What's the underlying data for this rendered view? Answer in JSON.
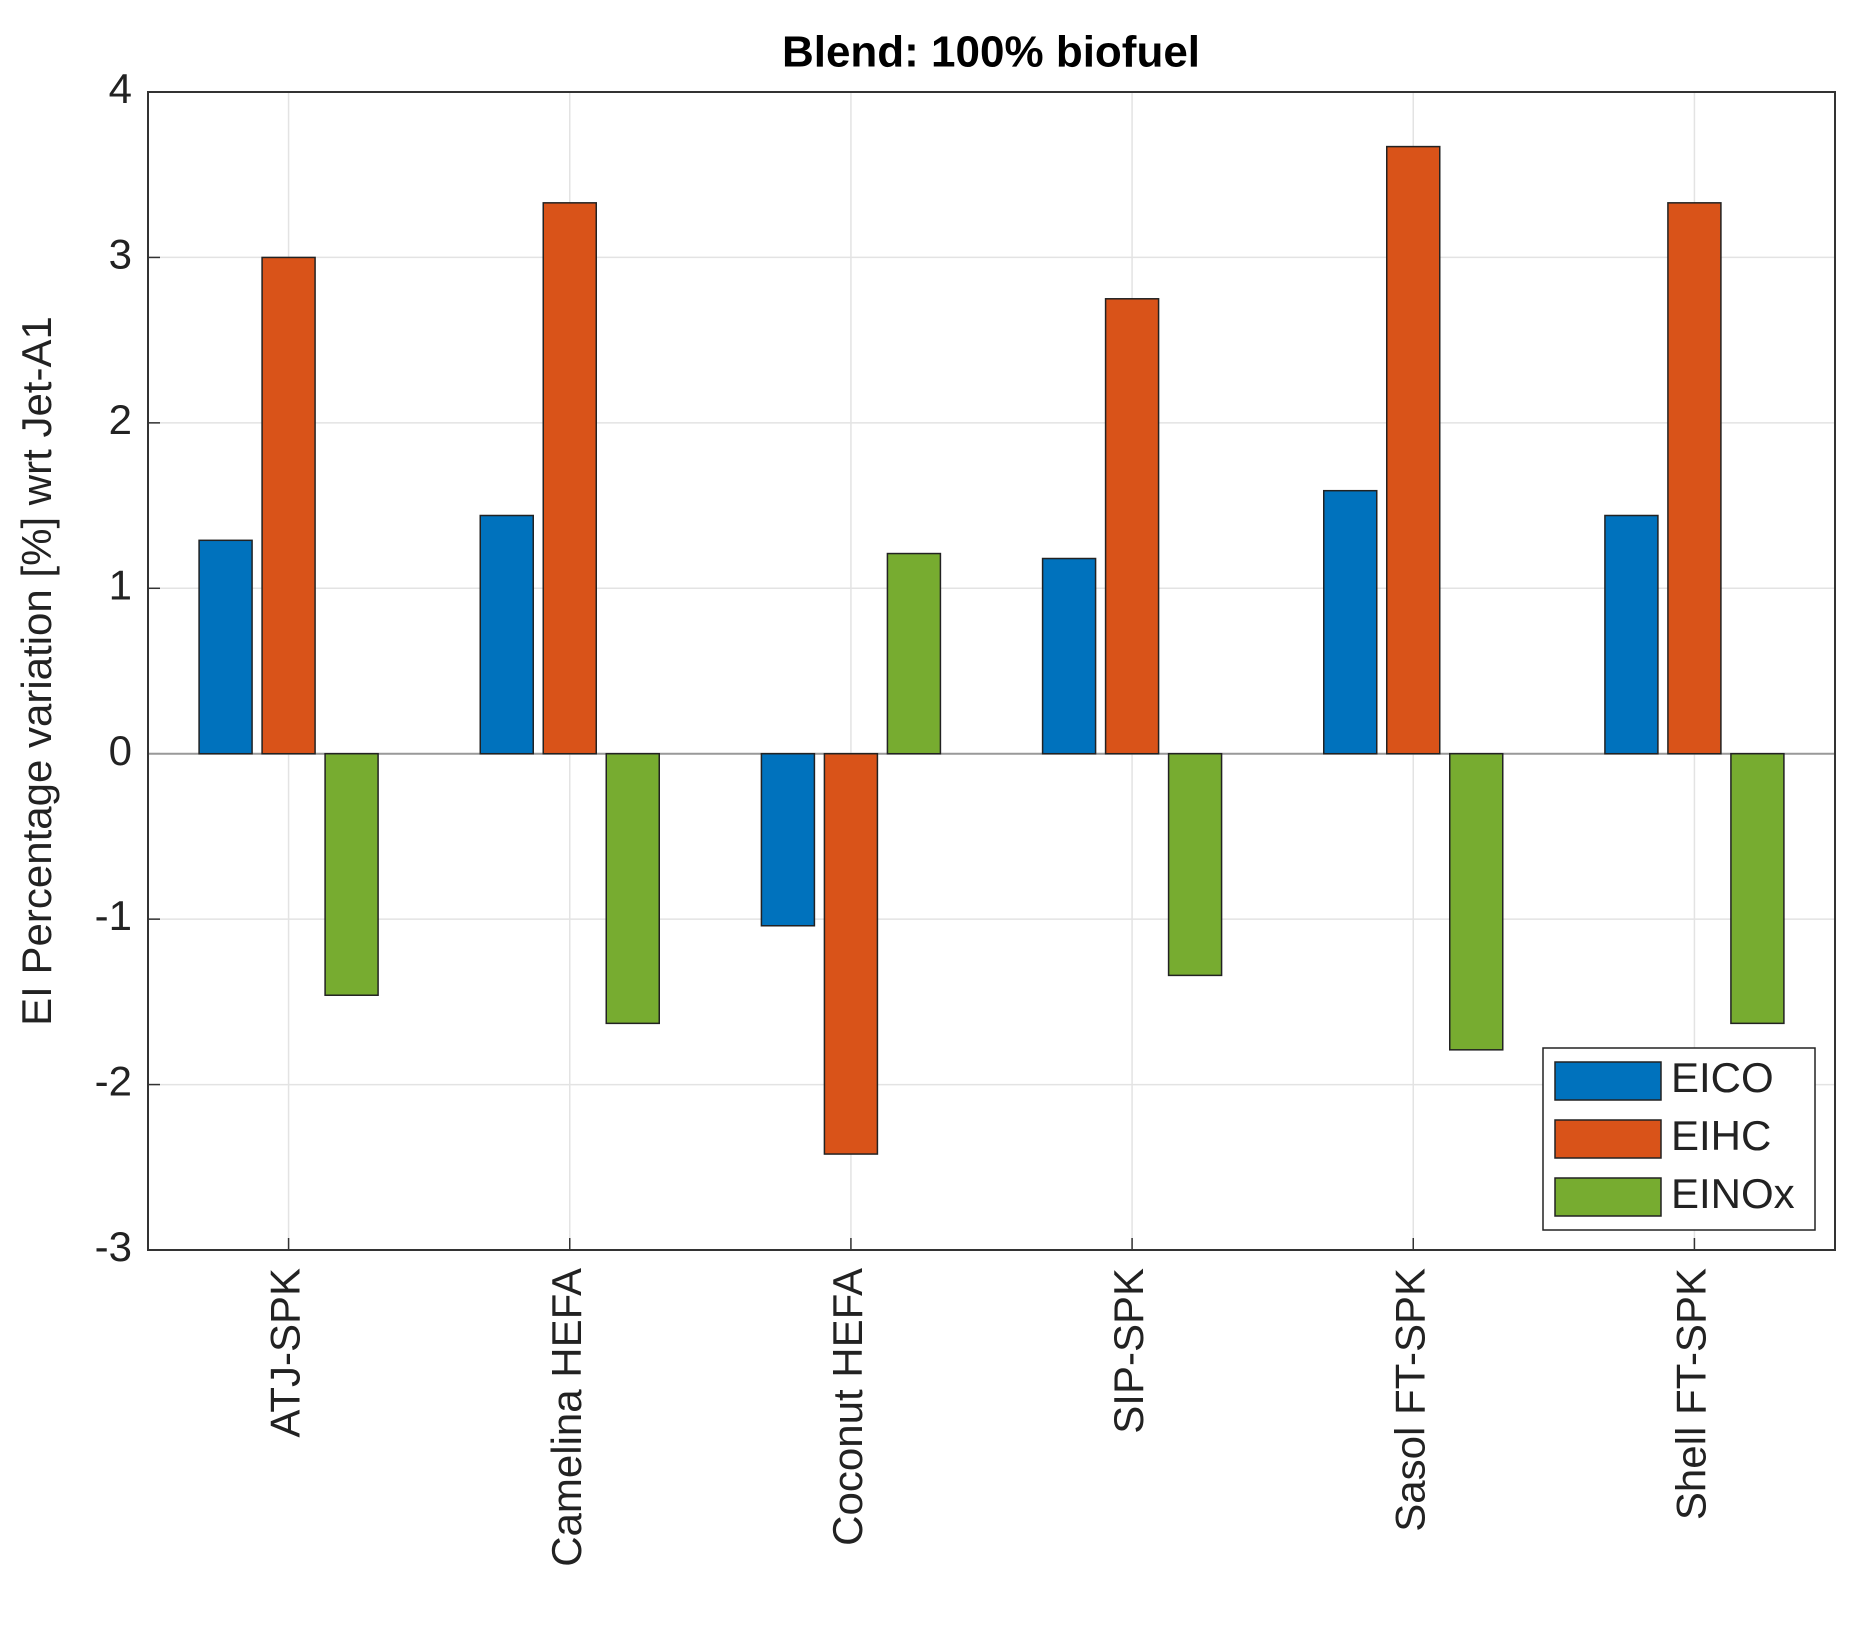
{
  "chart_data": {
    "type": "bar",
    "title": "Blend: 100% biofuel",
    "y_label": "EI Percentage variation [%] wrt Jet-A1",
    "categories": [
      "ATJ-SPK",
      "Camelina HEFA",
      "Coconut HEFA",
      "SIP-SPK",
      "Sasol FT-SPK",
      "Shell FT-SPK"
    ],
    "series": [
      {
        "name": "EICO",
        "color": "#0072bd",
        "values": [
          1.29,
          1.44,
          -1.04,
          1.18,
          1.59,
          1.44
        ]
      },
      {
        "name": "EIHC",
        "color": "#d95319",
        "values": [
          3.0,
          3.33,
          -2.42,
          2.75,
          3.67,
          3.33
        ]
      },
      {
        "name": "EINOx",
        "color": "#77ac30",
        "values": [
          -1.46,
          -1.63,
          1.21,
          -1.34,
          -1.79,
          -1.63
        ]
      }
    ],
    "ylim": [
      -3,
      4
    ],
    "yticks": [
      -3,
      -2,
      -1,
      0,
      1,
      2,
      3,
      4
    ],
    "grid": true,
    "legend": "lower right"
  }
}
